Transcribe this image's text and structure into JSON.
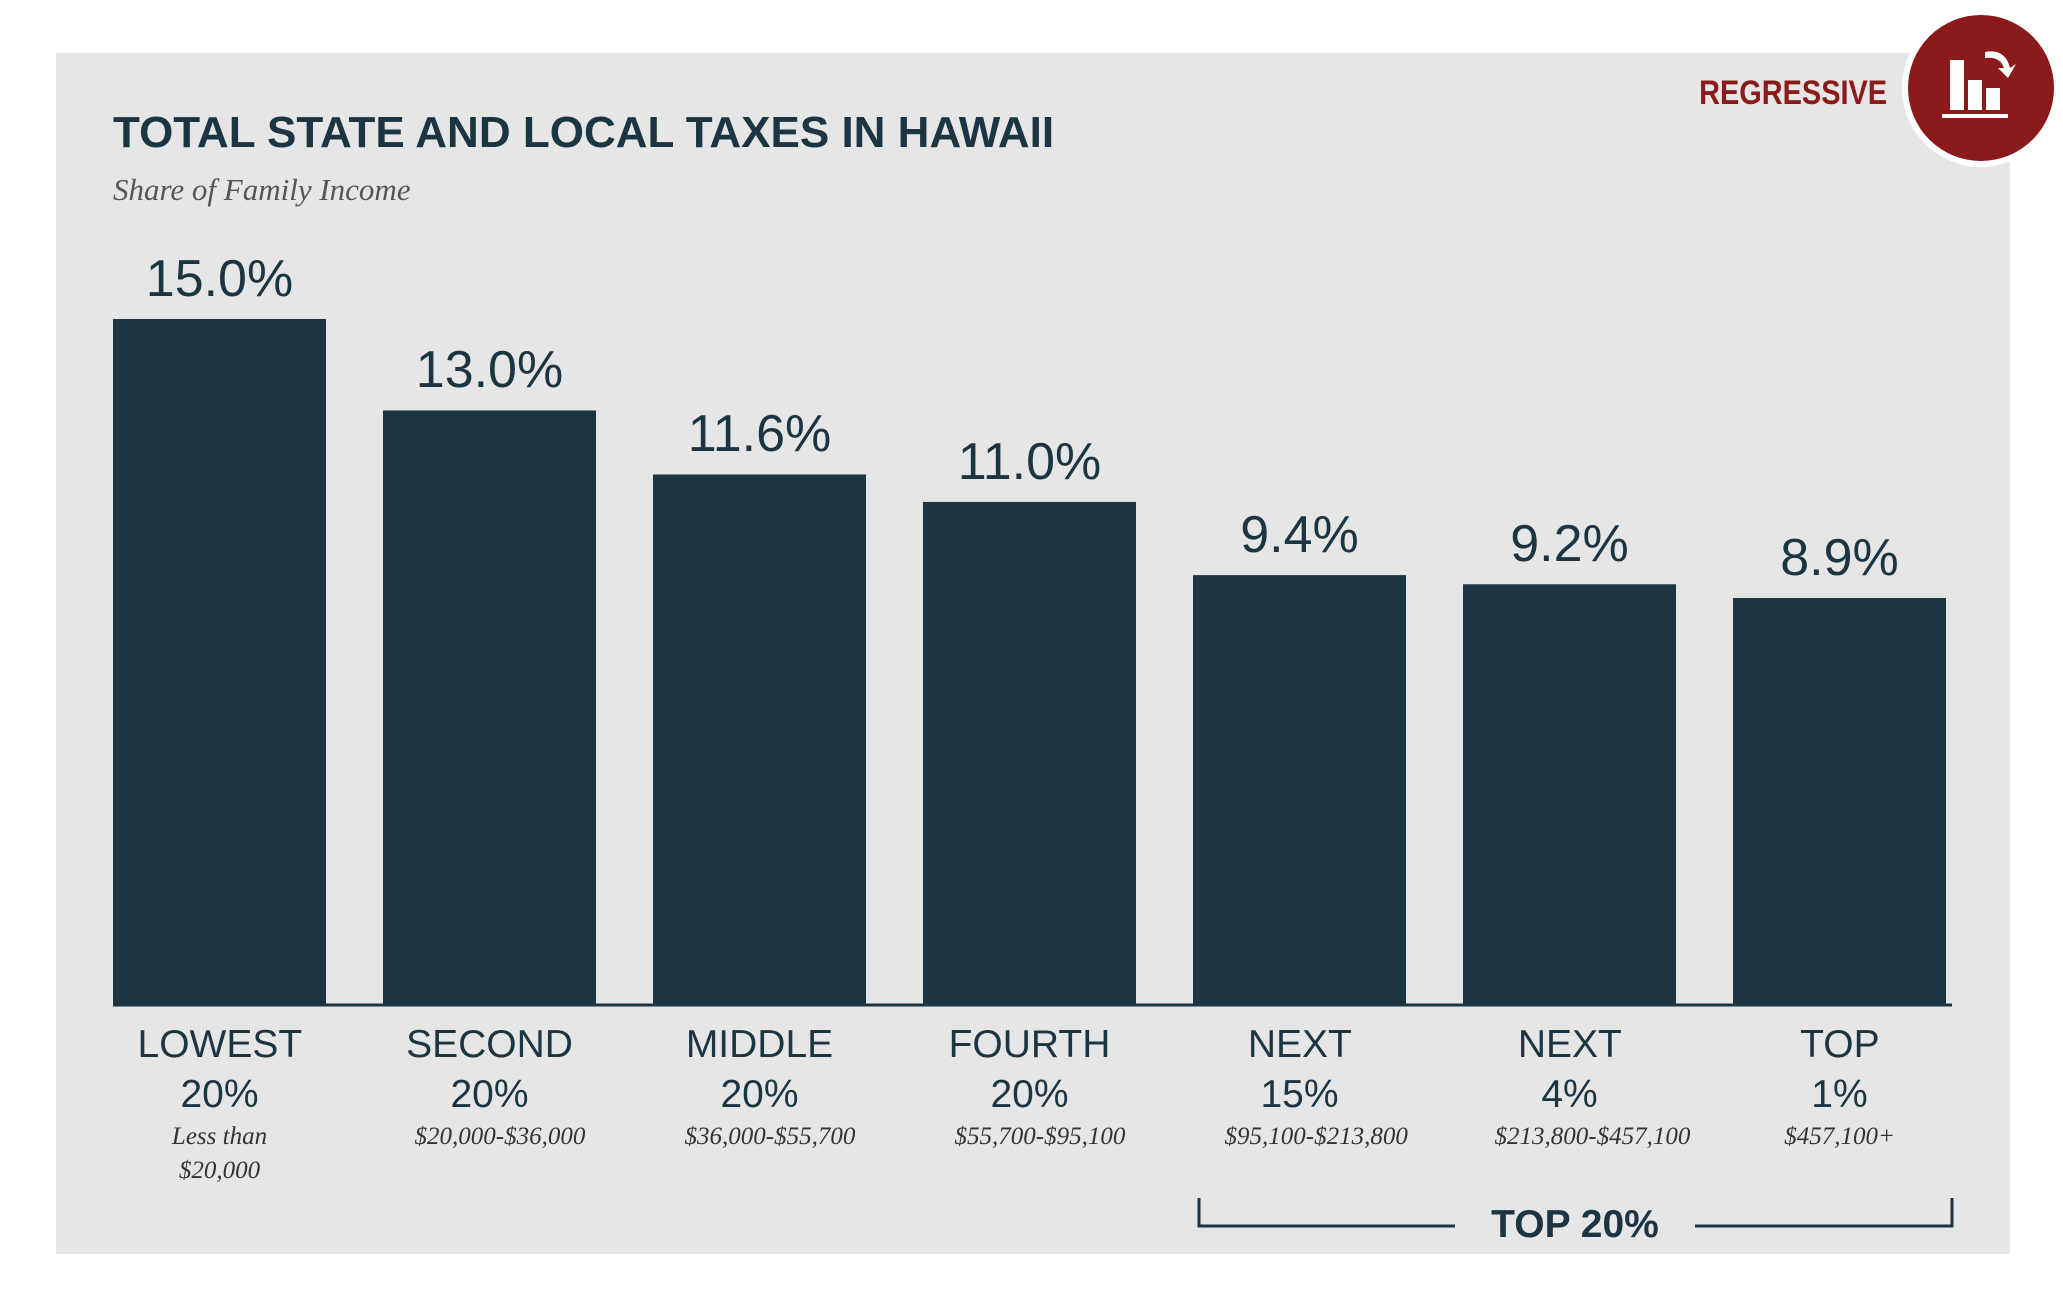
{
  "chart_data": {
    "type": "bar",
    "title": "TOTAL STATE AND LOCAL TAXES IN HAWAII",
    "subtitle": "Share of Family Income",
    "categories": [
      "LOWEST 20%",
      "SECOND 20%",
      "MIDDLE 20%",
      "FOURTH 20%",
      "NEXT 15%",
      "NEXT 4%",
      "TOP 1%"
    ],
    "income_ranges": [
      "Less than $20,000",
      "$20,000-$36,000",
      "$36,000-$55,700",
      "$55,700-$95,100",
      "$95,100-$213,800",
      "$213,800-$457,100",
      "$457,100+"
    ],
    "values": [
      15.0,
      13.0,
      11.6,
      11.0,
      9.4,
      9.2,
      8.9
    ],
    "value_labels": [
      "15.0%",
      "13.0%",
      "11.6%",
      "11.0%",
      "9.4%",
      "9.2%",
      "8.9%"
    ],
    "color": "#1c3542",
    "bracket_label": "TOP 20%"
  },
  "badge": {
    "label": "REGRESSIVE"
  }
}
